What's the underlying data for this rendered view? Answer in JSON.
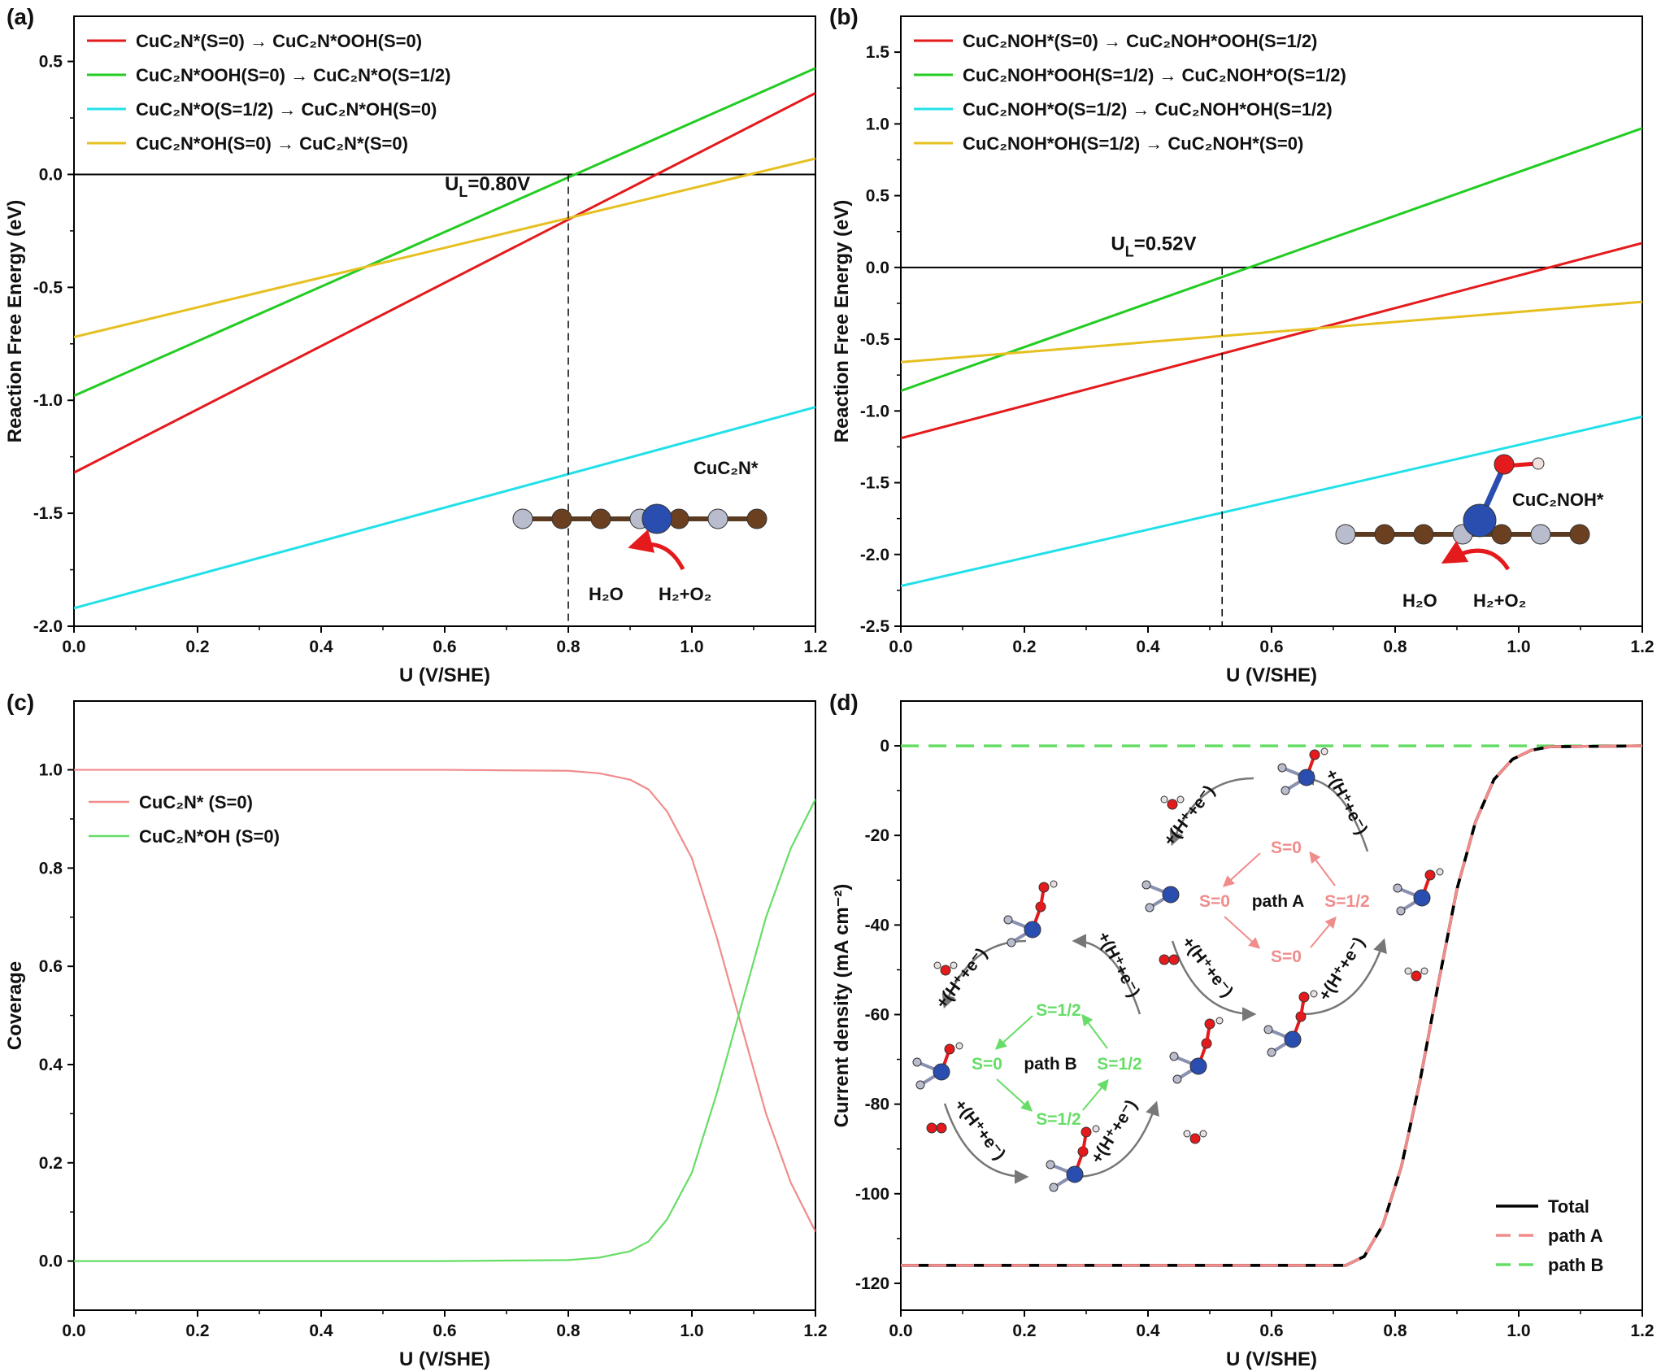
{
  "colors": {
    "red": "#e41a1c",
    "green": "#22cc22",
    "cyan": "#22e0e8",
    "yellow": "#e6c020",
    "pink": "#f08c8c",
    "lightgreen": "#66dd66",
    "black": "#000000"
  },
  "chart_data": [
    {
      "type": "line",
      "panel_label": "(a)",
      "xlabel": "U (V/SHE)",
      "ylabel": "Reaction Free Energy (eV)",
      "xlim": [
        0,
        1.2
      ],
      "ylim": [
        -2.0,
        0.7
      ],
      "xticks": [
        "0.0",
        "0.2",
        "0.4",
        "0.6",
        "0.8",
        "1.0",
        "1.2"
      ],
      "yticks": [
        "-2.0",
        "-1.5",
        "-1.0",
        "-0.5",
        "0.0",
        "0.5"
      ],
      "ytick_values": [
        -2.0,
        -1.5,
        -1.0,
        -0.5,
        0.0,
        0.5
      ],
      "legend_position": "top-left",
      "series": [
        {
          "name": "CuC₂N*(S=0) → CuC₂N*OOH(S=0)",
          "color": "red",
          "x": [
            0,
            1.2
          ],
          "y": [
            -1.32,
            0.36
          ]
        },
        {
          "name": "CuC₂N*OOH(S=0) → CuC₂N*O(S=1/2)",
          "color": "green",
          "x": [
            0,
            1.2
          ],
          "y": [
            -0.98,
            0.47
          ]
        },
        {
          "name": "CuC₂N*O(S=1/2) → CuC₂N*OH(S=0)",
          "color": "cyan",
          "x": [
            0,
            1.2
          ],
          "y": [
            -1.92,
            -1.03
          ]
        },
        {
          "name": "CuC₂N*OH(S=0) → CuC₂N*(S=0)",
          "color": "yellow",
          "x": [
            0,
            1.2
          ],
          "y": [
            -0.72,
            0.07
          ]
        }
      ],
      "hline": 0,
      "vline": 0.8,
      "annotation": {
        "main": "U",
        "sub": "L",
        "rest": "=0.80V",
        "x": 0.6,
        "y": -0.07
      },
      "molecule_label": "CuC₂N*",
      "reaction_left": "H₂O",
      "reaction_right": "H₂+O₂"
    },
    {
      "type": "line",
      "panel_label": "(b)",
      "xlabel": "U (V/SHE)",
      "ylabel": "Reaction Free Energy (eV)",
      "xlim": [
        0,
        1.2
      ],
      "ylim": [
        -2.5,
        1.75
      ],
      "xticks": [
        "0.0",
        "0.2",
        "0.4",
        "0.6",
        "0.8",
        "1.0",
        "1.2"
      ],
      "yticks": [
        "-2.5",
        "-2.0",
        "-1.5",
        "-1.0",
        "-0.5",
        "0.0",
        "0.5",
        "1.0",
        "1.5"
      ],
      "ytick_values": [
        -2.5,
        -2.0,
        -1.5,
        -1.0,
        -0.5,
        0.0,
        0.5,
        1.0,
        1.5
      ],
      "legend_position": "top-left",
      "series": [
        {
          "name": "CuC₂NOH*(S=0) → CuC₂NOH*OOH(S=1/2)",
          "color": "red",
          "x": [
            0,
            1.2
          ],
          "y": [
            -1.19,
            0.17
          ]
        },
        {
          "name": "CuC₂NOH*OOH(S=1/2) → CuC₂NOH*O(S=1/2)",
          "color": "green",
          "x": [
            0,
            1.2
          ],
          "y": [
            -0.86,
            0.97
          ]
        },
        {
          "name": "CuC₂NOH*O(S=1/2) → CuC₂NOH*OH(S=1/2)",
          "color": "cyan",
          "x": [
            0,
            1.2
          ],
          "y": [
            -2.22,
            -1.04
          ]
        },
        {
          "name": "CuC₂NOH*OH(S=1/2) → CuC₂NOH*(S=0)",
          "color": "yellow",
          "x": [
            0,
            1.2
          ],
          "y": [
            -0.66,
            -0.24
          ]
        }
      ],
      "hline": 0,
      "vline": 0.52,
      "annotation": {
        "main": "U",
        "sub": "L",
        "rest": "=0.52V",
        "x": 0.34,
        "y": 0.12
      },
      "molecule_label": "CuC₂NOH*",
      "reaction_left": "H₂O",
      "reaction_right": "H₂+O₂"
    },
    {
      "type": "line",
      "panel_label": "(c)",
      "xlabel": "U (V/SHE)",
      "ylabel": "Coverage",
      "xlim": [
        0,
        1.2
      ],
      "ylim": [
        -0.1,
        1.14
      ],
      "xticks": [
        "0.0",
        "0.2",
        "0.4",
        "0.6",
        "0.8",
        "1.0",
        "1.2"
      ],
      "yticks": [
        "0.0",
        "0.2",
        "0.4",
        "0.6",
        "0.8",
        "1.0"
      ],
      "ytick_values": [
        0.0,
        0.2,
        0.4,
        0.6,
        0.8,
        1.0
      ],
      "legend_position": "upper-left",
      "series": [
        {
          "name": "CuC₂N* (S=0)",
          "color": "pink",
          "x": [
            0,
            0.2,
            0.4,
            0.6,
            0.8,
            0.85,
            0.9,
            0.93,
            0.96,
            1.0,
            1.04,
            1.08,
            1.12,
            1.16,
            1.2
          ],
          "y": [
            1.0,
            1.0,
            1.0,
            1.0,
            0.998,
            0.993,
            0.98,
            0.96,
            0.915,
            0.82,
            0.66,
            0.48,
            0.3,
            0.16,
            0.06
          ]
        },
        {
          "name": "CuC₂N*OH (S=0)",
          "color": "lightgreen",
          "x": [
            0,
            0.2,
            0.4,
            0.6,
            0.8,
            0.85,
            0.9,
            0.93,
            0.96,
            1.0,
            1.04,
            1.08,
            1.12,
            1.16,
            1.2
          ],
          "y": [
            0.0,
            0.0,
            0.0,
            0.0,
            0.002,
            0.007,
            0.02,
            0.04,
            0.085,
            0.18,
            0.34,
            0.52,
            0.7,
            0.84,
            0.94
          ]
        }
      ]
    },
    {
      "type": "line",
      "panel_label": "(d)",
      "xlabel": "U (V/SHE)",
      "ylabel": "Current density (mA cm⁻²)",
      "xlim": [
        0,
        1.2
      ],
      "ylim": [
        -126,
        10
      ],
      "xticks": [
        "0.0",
        "0.2",
        "0.4",
        "0.6",
        "0.8",
        "1.0",
        "1.2"
      ],
      "yticks": [
        "-120",
        "-100",
        "-80",
        "-60",
        "-40",
        "-20",
        "0"
      ],
      "ytick_values": [
        -120,
        -100,
        -80,
        -60,
        -40,
        -20,
        0
      ],
      "legend_position": "bottom-right",
      "series": [
        {
          "name": "Total",
          "color": "black",
          "x": [
            0,
            0.72,
            0.75,
            0.78,
            0.81,
            0.84,
            0.87,
            0.9,
            0.93,
            0.96,
            0.99,
            1.02,
            1.05,
            1.2
          ],
          "y": [
            -116,
            -116,
            -114,
            -107,
            -94,
            -75,
            -53,
            -32,
            -17,
            -7.5,
            -3,
            -1,
            -0.2,
            0
          ]
        },
        {
          "name": "path A",
          "color": "pink",
          "x": [
            0,
            0.72,
            0.75,
            0.78,
            0.81,
            0.84,
            0.87,
            0.9,
            0.93,
            0.96,
            0.99,
            1.02,
            1.05,
            1.2
          ],
          "y": [
            -116,
            -116,
            -114,
            -107,
            -94,
            -75,
            -53,
            -32,
            -17,
            -7.5,
            -3,
            -1,
            -0.2,
            0
          ]
        },
        {
          "name": "path B",
          "color": "lightgreen",
          "x": [
            0,
            1.2
          ],
          "y": [
            0,
            0
          ]
        }
      ],
      "scheme": {
        "pathA": {
          "title": "path A",
          "top": "S=0",
          "left": "S=0",
          "right": "S=1/2",
          "bottom": "S=0"
        },
        "pathB": {
          "title": "path B",
          "top": "S=1/2",
          "left": "S=0",
          "right": "S=1/2",
          "bottom": "S=1/2"
        },
        "step_label": "+(H⁺+e⁻)"
      }
    }
  ]
}
